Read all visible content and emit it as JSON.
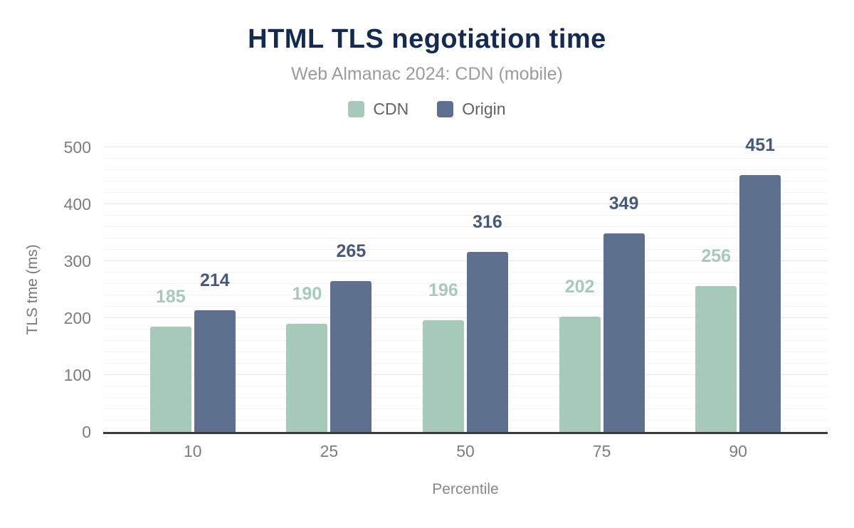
{
  "header": {
    "title": "HTML TLS negotiation time",
    "subtitle": "Web Almanac 2024: CDN (mobile)"
  },
  "legend": {
    "items": [
      {
        "label": "CDN",
        "color": "#a7c9b8"
      },
      {
        "label": "Origin",
        "color": "#5d708e"
      }
    ]
  },
  "axes": {
    "y_title": "TLS tme (ms)",
    "x_title": "Percentile"
  },
  "colors": {
    "title": "#142a4e",
    "subtitle": "#9b9b9b",
    "legend_text": "#5d6268",
    "tick_text": "#7a7d81",
    "axis_title_text": "#75787c",
    "axis_line": "#3b3b3b",
    "grid_minor": "#f3f3f5",
    "grid_major": "#e7e7ea"
  },
  "chart_data": {
    "type": "bar",
    "title": "HTML TLS negotiation time",
    "subtitle": "Web Almanac 2024: CDN (mobile)",
    "xlabel": "Percentile",
    "ylabel": "TLS tme (ms)",
    "categories": [
      "10",
      "25",
      "50",
      "75",
      "90"
    ],
    "series": [
      {
        "name": "CDN",
        "color": "#a7c9b8",
        "label_color": "#a7c9b8",
        "values": [
          185,
          190,
          196,
          202,
          256
        ]
      },
      {
        "name": "Origin",
        "color": "#5d708e",
        "label_color": "#46597b",
        "values": [
          214,
          265,
          316,
          349,
          451
        ]
      }
    ],
    "ylim": [
      0,
      500
    ],
    "yticks": [
      0,
      100,
      200,
      300,
      400,
      500
    ],
    "grid": {
      "show": true,
      "minor_step": 20,
      "major_step": 100
    },
    "legend_position": "top",
    "data_labels": true
  }
}
